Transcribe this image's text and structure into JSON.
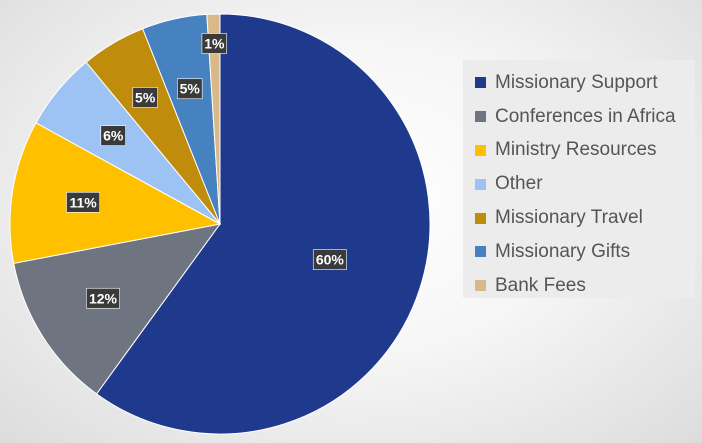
{
  "chart_data": {
    "type": "pie",
    "title": "",
    "legend_position": "right",
    "start_angle_deg": 0,
    "direction": "clockwise",
    "slices": [
      {
        "name": "Missionary Support",
        "value": 60,
        "label": "60%",
        "color": "#1f3a8c"
      },
      {
        "name": "Conferences in Africa",
        "value": 12,
        "label": "12%",
        "color": "#6f7580"
      },
      {
        "name": "Ministry Resources",
        "value": 11,
        "label": "11%",
        "color": "#ffc000"
      },
      {
        "name": "Other",
        "value": 6,
        "label": "6%",
        "color": "#9dc3f5"
      },
      {
        "name": "Missionary Travel",
        "value": 5,
        "label": "5%",
        "color": "#bf8c0c"
      },
      {
        "name": "Missionary Gifts",
        "value": 5,
        "label": "5%",
        "color": "#4682c0"
      },
      {
        "name": "Bank Fees",
        "value": 1,
        "label": "1%",
        "color": "#d9b88a"
      }
    ]
  }
}
